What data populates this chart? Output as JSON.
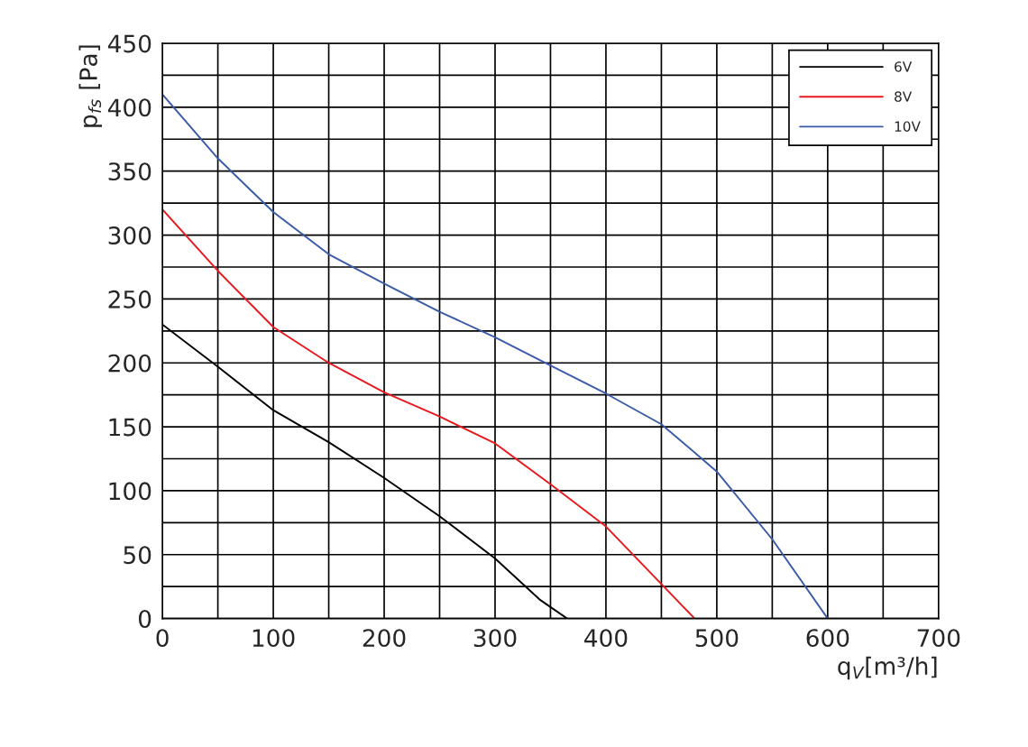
{
  "chart_data": {
    "type": "line",
    "xlabel": "q$_{V}$[m³/h]",
    "ylabel": "p$_{fs}$ [Pa]",
    "xlim": [
      0,
      700
    ],
    "ylim": [
      0,
      450
    ],
    "xticks": [
      0,
      {
        "value": 50,
        "label": null
      },
      100,
      {
        "value": 150,
        "label": null
      },
      200,
      {
        "value": 250,
        "label": null
      },
      300,
      {
        "value": 350,
        "label": null
      },
      400,
      {
        "value": 450,
        "label": null
      },
      500,
      {
        "value": 550,
        "label": null
      },
      600,
      {
        "value": 650,
        "label": null
      },
      700
    ],
    "yticks": [
      0,
      {
        "value": 25,
        "label": null
      },
      50,
      {
        "value": 75,
        "label": null
      },
      100,
      {
        "value": 125,
        "label": null
      },
      150,
      {
        "value": 175,
        "label": null
      },
      200,
      {
        "value": 225,
        "label": null
      },
      250,
      {
        "value": 275,
        "label": null
      },
      300,
      {
        "value": 325,
        "label": null
      },
      350,
      {
        "value": 375,
        "label": null
      },
      400,
      {
        "value": 425,
        "label": null
      },
      450
    ],
    "grid": true,
    "legend": "top right",
    "marker": "none",
    "line_style": "solid",
    "series": [
      {
        "name": "6V",
        "color": "#000000",
        "x": [
          0,
          50,
          100,
          150,
          200,
          250,
          300,
          340,
          365
        ],
        "values": [
          230,
          197,
          163,
          138,
          110,
          80,
          47,
          15,
          0
        ]
      },
      {
        "name": "8V",
        "color": "#e8191f",
        "x": [
          0,
          50,
          100,
          150,
          200,
          250,
          300,
          350,
          400,
          450,
          480
        ],
        "values": [
          320,
          272,
          228,
          200,
          177,
          158,
          137,
          105,
          72,
          27,
          0
        ]
      },
      {
        "name": "10V",
        "color": "#3a5ba8",
        "x": [
          0,
          50,
          100,
          150,
          200,
          250,
          300,
          350,
          400,
          450,
          500,
          550,
          600
        ],
        "values": [
          410,
          360,
          318,
          285,
          262,
          240,
          220,
          198,
          176,
          152,
          115,
          62,
          0
        ]
      }
    ]
  }
}
